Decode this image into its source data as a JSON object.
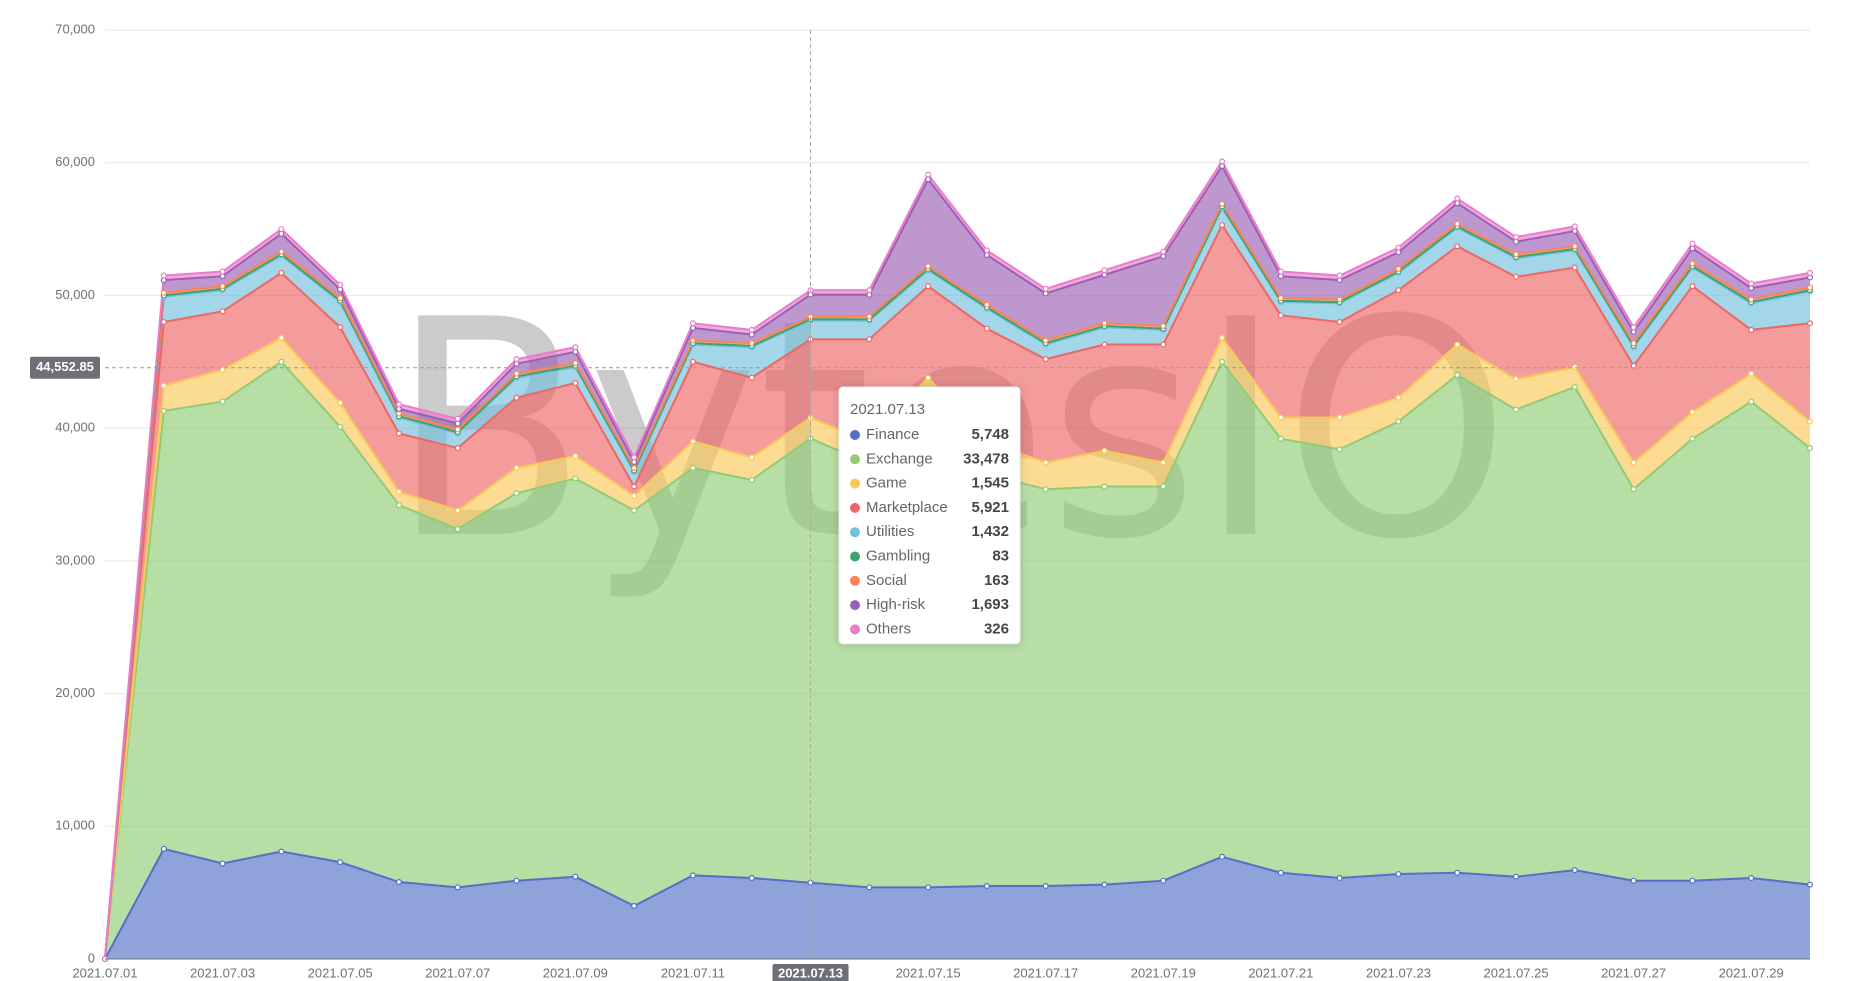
{
  "chart_data": {
    "type": "stacked-area",
    "watermark": "BytesIO",
    "categories": [
      "2021.07.01",
      null,
      "2021.07.03",
      null,
      "2021.07.05",
      null,
      "2021.07.07",
      null,
      "2021.07.09",
      null,
      "2021.07.11",
      null,
      "2021.07.13",
      null,
      "2021.07.15",
      null,
      "2021.07.17",
      null,
      "2021.07.19",
      null,
      "2021.07.21",
      null,
      "2021.07.23",
      null,
      "2021.07.25",
      null,
      "2021.07.27",
      null,
      "2021.07.29",
      null
    ],
    "series": [
      {
        "name": "Finance",
        "color": "#5470c6",
        "values": [
          0,
          8300,
          7200,
          8100,
          7300,
          5800,
          5400,
          5900,
          6200,
          4000,
          6300,
          6100,
          5748,
          5400,
          5400,
          5500,
          5500,
          5600,
          5900,
          7700,
          6500,
          6100,
          6400,
          6500,
          6200,
          6700,
          5900,
          5900,
          6100,
          5600
        ]
      },
      {
        "name": "Exchange",
        "color": "#91cc75",
        "values": [
          0,
          33000,
          34800,
          36900,
          32800,
          28400,
          27000,
          29200,
          30000,
          29800,
          30700,
          30000,
          33478,
          31900,
          33300,
          31000,
          29900,
          30000,
          29700,
          37300,
          32700,
          32300,
          34100,
          37500,
          35200,
          36400,
          29500,
          33300,
          35900,
          32900
        ]
      },
      {
        "name": "Game",
        "color": "#fac858",
        "values": [
          0,
          1900,
          2400,
          1800,
          1800,
          1000,
          1400,
          1900,
          1700,
          1100,
          2000,
          1700,
          1545,
          1700,
          5100,
          2500,
          2000,
          2700,
          1800,
          1800,
          1600,
          2400,
          1800,
          2300,
          2300,
          1500,
          2000,
          2000,
          2100,
          2000
        ]
      },
      {
        "name": "Marketplace",
        "color": "#ee6666",
        "values": [
          0,
          4800,
          4400,
          4900,
          5700,
          4400,
          4700,
          5300,
          5500,
          700,
          6000,
          6000,
          5921,
          7700,
          6900,
          8500,
          7800,
          8000,
          8900,
          8500,
          7700,
          7200,
          8100,
          7400,
          7700,
          7500,
          7300,
          9500,
          3300,
          7400
        ]
      },
      {
        "name": "Utilities",
        "color": "#73c0de",
        "values": [
          0,
          1900,
          1600,
          1300,
          1900,
          1200,
          1100,
          1500,
          1200,
          1100,
          1300,
          2300,
          1432,
          1400,
          1200,
          1500,
          1100,
          1300,
          1100,
          1300,
          1000,
          1400,
          1300,
          1400,
          1400,
          1300,
          1400,
          1400,
          2000,
          2400
        ]
      },
      {
        "name": "Gambling",
        "color": "#3ba272",
        "values": [
          0,
          100,
          100,
          100,
          100,
          100,
          100,
          100,
          100,
          100,
          100,
          100,
          83,
          100,
          100,
          100,
          100,
          100,
          100,
          100,
          100,
          100,
          100,
          100,
          100,
          100,
          100,
          100,
          100,
          100
        ]
      },
      {
        "name": "Social",
        "color": "#fc8452",
        "values": [
          0,
          200,
          200,
          200,
          200,
          200,
          200,
          200,
          200,
          200,
          200,
          200,
          163,
          200,
          200,
          200,
          200,
          200,
          200,
          200,
          200,
          200,
          200,
          200,
          200,
          200,
          200,
          200,
          200,
          200
        ]
      },
      {
        "name": "High-risk",
        "color": "#9a60b4",
        "values": [
          0,
          950,
          750,
          1350,
          650,
          350,
          450,
          750,
          850,
          450,
          950,
          650,
          1693,
          1650,
          6550,
          3750,
          3550,
          3650,
          5250,
          2850,
          1650,
          1450,
          1250,
          1550,
          950,
          1150,
          850,
          1150,
          850,
          750
        ]
      },
      {
        "name": "Others",
        "color": "#ea7ccc",
        "values": [
          0,
          350,
          350,
          350,
          350,
          350,
          350,
          350,
          350,
          350,
          350,
          350,
          326,
          350,
          350,
          350,
          350,
          350,
          350,
          350,
          350,
          350,
          350,
          350,
          350,
          350,
          350,
          350,
          350,
          350
        ]
      }
    ],
    "ylim": [
      0,
      70000
    ],
    "yticks": [
      0,
      {
        "value": 10000,
        "label": "10,000"
      },
      {
        "value": 20000,
        "label": "20,000"
      },
      {
        "value": 30000,
        "label": "30,000"
      },
      {
        "value": 40000,
        "label": "40,000"
      },
      {
        "value": 50000,
        "label": "50,000"
      },
      {
        "value": 60000,
        "label": "60,000"
      },
      {
        "value": 70000,
        "label": "70,000"
      }
    ],
    "grid": true,
    "pointer": {
      "value": 44552.85,
      "label": "44,552.85"
    },
    "tooltip": {
      "title": "2021.07.13",
      "labels": [
        "5,748",
        "33,478",
        "1,545",
        "5,921",
        "1,432",
        "83",
        "163",
        "1,693",
        "326"
      ]
    }
  }
}
